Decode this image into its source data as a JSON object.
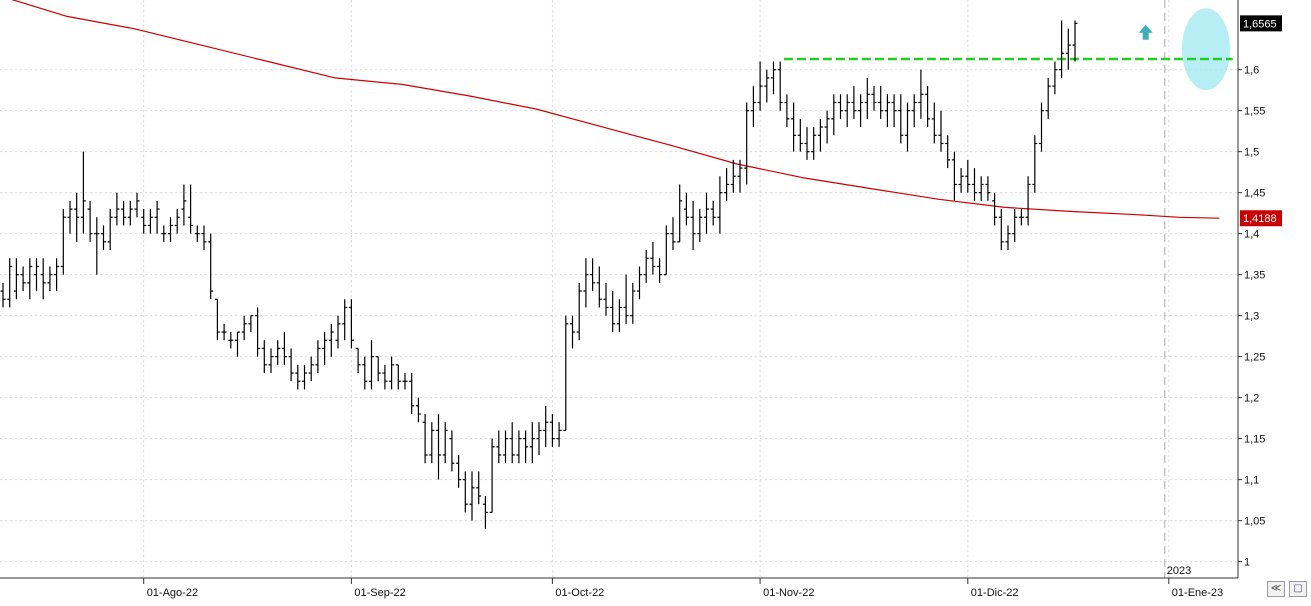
{
  "chart_data": {
    "type": "ohlc",
    "y_axis": {
      "range": [
        0.98,
        1.685
      ],
      "ticks": [
        1,
        1.05,
        1.1,
        1.15,
        1.2,
        1.25,
        1.3,
        1.35,
        1.4,
        1.45,
        1.5,
        1.55,
        1.6
      ],
      "tick_labels": [
        "1",
        "1,05",
        "1,1",
        "1,15",
        "1,2",
        "1,25",
        "1,3",
        "1,35",
        "1,4",
        "1,45",
        "1,5",
        "1,55",
        "1,6"
      ],
      "side": "right"
    },
    "x_axis": {
      "tick_labels": [
        "01-Ago-22",
        "01-Sep-22",
        "01-Oct-22",
        "01-Nov-22",
        "01-Dic-22",
        "01-Ene-23"
      ],
      "tick_bar_index": [
        21,
        52,
        82,
        113,
        144,
        174
      ]
    },
    "year_marker": {
      "label": "2023",
      "bar_index": 174
    },
    "grid": true,
    "series": [
      {
        "name": "",
        "kind": "ohlc",
        "color": "#000000",
        "bars": [
          [
            1.33,
            1.34,
            1.31,
            1.32
          ],
          [
            1.32,
            1.37,
            1.31,
            1.36
          ],
          [
            1.33,
            1.37,
            1.32,
            1.35
          ],
          [
            1.35,
            1.36,
            1.33,
            1.34
          ],
          [
            1.34,
            1.37,
            1.32,
            1.36
          ],
          [
            1.35,
            1.37,
            1.33,
            1.36
          ],
          [
            1.35,
            1.37,
            1.32,
            1.34
          ],
          [
            1.34,
            1.36,
            1.33,
            1.35
          ],
          [
            1.35,
            1.37,
            1.33,
            1.36
          ],
          [
            1.36,
            1.43,
            1.35,
            1.42
          ],
          [
            1.42,
            1.44,
            1.4,
            1.43
          ],
          [
            1.43,
            1.45,
            1.39,
            1.42
          ],
          [
            1.42,
            1.5,
            1.4,
            1.44
          ],
          [
            1.43,
            1.44,
            1.39,
            1.4
          ],
          [
            1.4,
            1.42,
            1.35,
            1.4
          ],
          [
            1.4,
            1.41,
            1.38,
            1.39
          ],
          [
            1.39,
            1.43,
            1.38,
            1.42
          ],
          [
            1.42,
            1.45,
            1.41,
            1.43
          ],
          [
            1.43,
            1.44,
            1.41,
            1.42
          ],
          [
            1.42,
            1.44,
            1.41,
            1.43
          ],
          [
            1.43,
            1.45,
            1.42,
            1.44
          ],
          [
            1.42,
            1.43,
            1.4,
            1.41
          ],
          [
            1.41,
            1.43,
            1.4,
            1.42
          ],
          [
            1.42,
            1.44,
            1.4,
            1.43
          ],
          [
            1.4,
            1.41,
            1.39,
            1.4
          ],
          [
            1.4,
            1.42,
            1.39,
            1.41
          ],
          [
            1.41,
            1.43,
            1.4,
            1.42
          ],
          [
            1.43,
            1.46,
            1.41,
            1.44
          ],
          [
            1.42,
            1.46,
            1.4,
            1.41
          ],
          [
            1.4,
            1.41,
            1.39,
            1.4
          ],
          [
            1.4,
            1.41,
            1.38,
            1.39
          ],
          [
            1.39,
            1.4,
            1.32,
            1.33
          ],
          [
            1.32,
            1.29,
            1.27,
            1.28
          ],
          [
            1.28,
            1.29,
            1.27,
            1.28
          ],
          [
            1.27,
            1.28,
            1.26,
            1.27
          ],
          [
            1.27,
            1.28,
            1.25,
            1.28
          ],
          [
            1.28,
            1.3,
            1.27,
            1.29
          ],
          [
            1.29,
            1.3,
            1.28,
            1.3
          ],
          [
            1.3,
            1.31,
            1.25,
            1.26
          ],
          [
            1.26,
            1.27,
            1.23,
            1.24
          ],
          [
            1.24,
            1.26,
            1.23,
            1.25
          ],
          [
            1.25,
            1.27,
            1.24,
            1.26
          ],
          [
            1.26,
            1.28,
            1.24,
            1.25
          ],
          [
            1.25,
            1.26,
            1.22,
            1.23
          ],
          [
            1.23,
            1.24,
            1.21,
            1.22
          ],
          [
            1.22,
            1.24,
            1.21,
            1.23
          ],
          [
            1.23,
            1.25,
            1.22,
            1.24
          ],
          [
            1.24,
            1.27,
            1.23,
            1.26
          ],
          [
            1.26,
            1.28,
            1.24,
            1.27
          ],
          [
            1.27,
            1.29,
            1.25,
            1.28
          ],
          [
            1.27,
            1.3,
            1.26,
            1.29
          ],
          [
            1.29,
            1.32,
            1.27,
            1.31
          ],
          [
            1.31,
            1.32,
            1.26,
            1.27
          ],
          [
            1.26,
            1.25,
            1.23,
            1.24
          ],
          [
            1.24,
            1.25,
            1.21,
            1.22
          ],
          [
            1.22,
            1.27,
            1.21,
            1.25
          ],
          [
            1.25,
            1.25,
            1.22,
            1.23
          ],
          [
            1.23,
            1.24,
            1.21,
            1.22
          ],
          [
            1.22,
            1.25,
            1.21,
            1.24
          ],
          [
            1.24,
            1.24,
            1.21,
            1.22
          ],
          [
            1.22,
            1.23,
            1.21,
            1.22
          ],
          [
            1.22,
            1.23,
            1.18,
            1.19
          ],
          [
            1.19,
            1.2,
            1.17,
            1.18
          ],
          [
            1.17,
            1.18,
            1.12,
            1.13
          ],
          [
            1.13,
            1.17,
            1.12,
            1.16
          ],
          [
            1.16,
            1.18,
            1.1,
            1.13
          ],
          [
            1.13,
            1.17,
            1.12,
            1.16
          ],
          [
            1.15,
            1.16,
            1.11,
            1.12
          ],
          [
            1.12,
            1.13,
            1.09,
            1.1
          ],
          [
            1.1,
            1.11,
            1.06,
            1.07
          ],
          [
            1.07,
            1.11,
            1.05,
            1.09
          ],
          [
            1.09,
            1.11,
            1.07,
            1.08
          ],
          [
            1.07,
            1.08,
            1.04,
            1.06
          ],
          [
            1.06,
            1.15,
            1.1,
            1.14
          ],
          [
            1.14,
            1.16,
            1.12,
            1.13
          ],
          [
            1.13,
            1.16,
            1.12,
            1.15
          ],
          [
            1.15,
            1.17,
            1.12,
            1.13
          ],
          [
            1.13,
            1.16,
            1.12,
            1.15
          ],
          [
            1.15,
            1.16,
            1.12,
            1.14
          ],
          [
            1.14,
            1.17,
            1.12,
            1.15
          ],
          [
            1.15,
            1.17,
            1.13,
            1.16
          ],
          [
            1.16,
            1.19,
            1.14,
            1.17
          ],
          [
            1.17,
            1.18,
            1.14,
            1.15
          ],
          [
            1.15,
            1.17,
            1.14,
            1.16
          ],
          [
            1.16,
            1.3,
            1.25,
            1.29
          ],
          [
            1.29,
            1.3,
            1.26,
            1.28
          ],
          [
            1.28,
            1.34,
            1.27,
            1.33
          ],
          [
            1.33,
            1.37,
            1.31,
            1.35
          ],
          [
            1.35,
            1.37,
            1.33,
            1.34
          ],
          [
            1.34,
            1.36,
            1.31,
            1.32
          ],
          [
            1.32,
            1.34,
            1.3,
            1.31
          ],
          [
            1.31,
            1.33,
            1.28,
            1.29
          ],
          [
            1.29,
            1.32,
            1.28,
            1.31
          ],
          [
            1.31,
            1.35,
            1.29,
            1.3
          ],
          [
            1.3,
            1.34,
            1.29,
            1.33
          ],
          [
            1.33,
            1.36,
            1.32,
            1.35
          ],
          [
            1.35,
            1.38,
            1.34,
            1.37
          ],
          [
            1.37,
            1.39,
            1.35,
            1.36
          ],
          [
            1.36,
            1.37,
            1.34,
            1.35
          ],
          [
            1.35,
            1.41,
            1.35,
            1.4
          ],
          [
            1.4,
            1.42,
            1.38,
            1.39
          ],
          [
            1.39,
            1.46,
            1.4,
            1.44
          ],
          [
            1.43,
            1.45,
            1.41,
            1.42
          ],
          [
            1.42,
            1.44,
            1.38,
            1.4
          ],
          [
            1.4,
            1.43,
            1.39,
            1.42
          ],
          [
            1.42,
            1.45,
            1.4,
            1.43
          ],
          [
            1.43,
            1.44,
            1.41,
            1.42
          ],
          [
            1.42,
            1.47,
            1.4,
            1.45
          ],
          [
            1.45,
            1.48,
            1.44,
            1.46
          ],
          [
            1.46,
            1.49,
            1.45,
            1.47
          ],
          [
            1.47,
            1.49,
            1.45,
            1.48
          ],
          [
            1.48,
            1.56,
            1.46,
            1.55
          ],
          [
            1.55,
            1.58,
            1.53,
            1.56
          ],
          [
            1.56,
            1.61,
            1.55,
            1.58
          ],
          [
            1.58,
            1.6,
            1.56,
            1.59
          ],
          [
            1.59,
            1.61,
            1.57,
            1.6
          ],
          [
            1.6,
            1.61,
            1.55,
            1.56
          ],
          [
            1.56,
            1.57,
            1.53,
            1.54
          ],
          [
            1.54,
            1.56,
            1.5,
            1.52
          ],
          [
            1.52,
            1.54,
            1.5,
            1.51
          ],
          [
            1.51,
            1.53,
            1.49,
            1.5
          ],
          [
            1.5,
            1.53,
            1.49,
            1.52
          ],
          [
            1.52,
            1.54,
            1.5,
            1.53
          ],
          [
            1.53,
            1.55,
            1.51,
            1.54
          ],
          [
            1.54,
            1.57,
            1.52,
            1.56
          ],
          [
            1.56,
            1.57,
            1.54,
            1.55
          ],
          [
            1.55,
            1.57,
            1.53,
            1.56
          ],
          [
            1.56,
            1.58,
            1.54,
            1.55
          ],
          [
            1.55,
            1.57,
            1.53,
            1.56
          ],
          [
            1.56,
            1.59,
            1.54,
            1.57
          ],
          [
            1.57,
            1.58,
            1.55,
            1.56
          ],
          [
            1.56,
            1.58,
            1.54,
            1.55
          ],
          [
            1.55,
            1.57,
            1.53,
            1.56
          ],
          [
            1.56,
            1.57,
            1.53,
            1.55
          ],
          [
            1.55,
            1.57,
            1.51,
            1.52
          ],
          [
            1.52,
            1.56,
            1.5,
            1.55
          ],
          [
            1.55,
            1.57,
            1.53,
            1.56
          ],
          [
            1.56,
            1.6,
            1.54,
            1.57
          ],
          [
            1.57,
            1.58,
            1.53,
            1.54
          ],
          [
            1.54,
            1.56,
            1.51,
            1.52
          ],
          [
            1.52,
            1.55,
            1.5,
            1.51
          ],
          [
            1.51,
            1.52,
            1.48,
            1.49
          ],
          [
            1.49,
            1.5,
            1.44,
            1.46
          ],
          [
            1.46,
            1.48,
            1.45,
            1.47
          ],
          [
            1.47,
            1.49,
            1.45,
            1.46
          ],
          [
            1.46,
            1.48,
            1.44,
            1.45
          ],
          [
            1.45,
            1.47,
            1.44,
            1.46
          ],
          [
            1.46,
            1.47,
            1.44,
            1.45
          ],
          [
            1.44,
            1.45,
            1.41,
            1.42
          ],
          [
            1.42,
            1.43,
            1.38,
            1.39
          ],
          [
            1.39,
            1.41,
            1.38,
            1.4
          ],
          [
            1.4,
            1.43,
            1.39,
            1.42
          ],
          [
            1.42,
            1.43,
            1.41,
            1.42
          ],
          [
            1.42,
            1.47,
            1.41,
            1.46
          ],
          [
            1.46,
            1.52,
            1.45,
            1.51
          ],
          [
            1.51,
            1.56,
            1.5,
            1.55
          ],
          [
            1.55,
            1.59,
            1.54,
            1.58
          ],
          [
            1.58,
            1.61,
            1.57,
            1.6
          ],
          [
            1.6,
            1.66,
            1.59,
            1.62
          ],
          [
            1.62,
            1.65,
            1.6,
            1.63
          ],
          [
            1.63,
            1.66,
            1.61,
            1.6565
          ]
        ]
      },
      {
        "name": "",
        "kind": "line",
        "color": "#cc0000",
        "points": [
          [
            0,
            1.69
          ],
          [
            10,
            1.665
          ],
          [
            20,
            1.65
          ],
          [
            30,
            1.63
          ],
          [
            40,
            1.61
          ],
          [
            50,
            1.59
          ],
          [
            60,
            1.582
          ],
          [
            70,
            1.568
          ],
          [
            80,
            1.552
          ],
          [
            90,
            1.53
          ],
          [
            100,
            1.508
          ],
          [
            110,
            1.485
          ],
          [
            120,
            1.468
          ],
          [
            130,
            1.455
          ],
          [
            140,
            1.442
          ],
          [
            150,
            1.432
          ],
          [
            160,
            1.427
          ],
          [
            170,
            1.423
          ],
          [
            176,
            1.42
          ],
          [
            182,
            1.4188
          ]
        ]
      }
    ],
    "last_price": {
      "value": 1.6565,
      "label": "1,6565",
      "color": "#000000"
    },
    "ma_last": {
      "value": 1.4188,
      "label": "1,4188",
      "color": "#cc0000"
    },
    "resistance": {
      "value": 1.613,
      "from_bar": 117,
      "to_bar": 184,
      "color": "#22cc22"
    },
    "highlight_ellipse": {
      "bar_center": 180,
      "value_center": 1.625,
      "color": "#9fe8f0"
    },
    "arrow_marker": {
      "bar_index": 171,
      "value": 1.645,
      "color": "#3bb0b8"
    }
  },
  "controls": {
    "zoom_icon": "double-chevron-icon",
    "save_icon": "floppy-disk-icon"
  }
}
